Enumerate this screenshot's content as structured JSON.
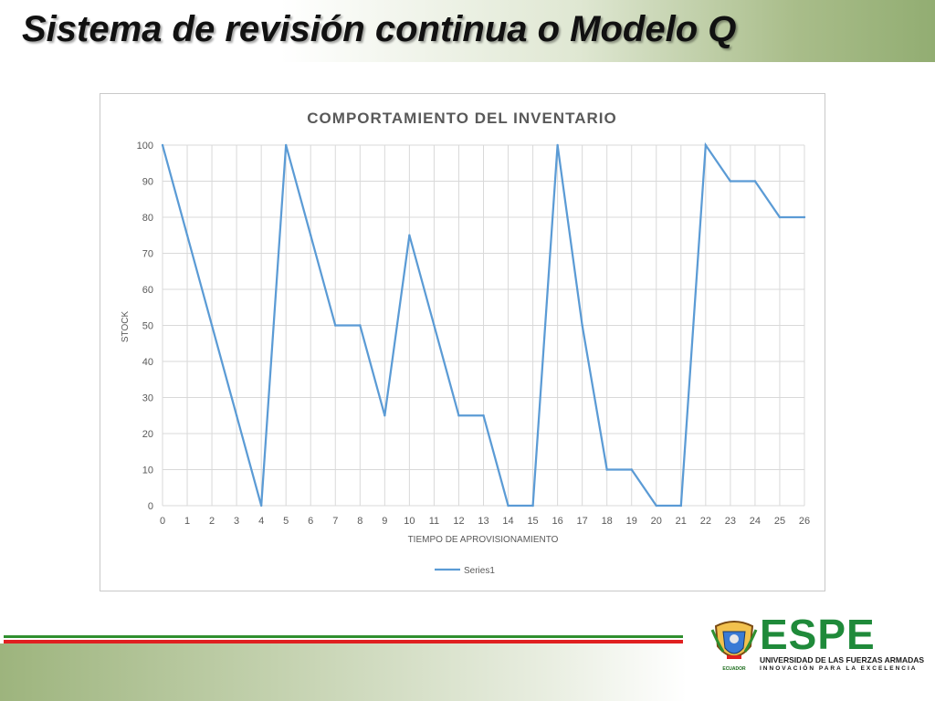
{
  "slide": {
    "title": "Sistema de revisión continua o Modelo Q"
  },
  "logo": {
    "wordmark": "ESPE",
    "line1": "UNIVERSIDAD DE LAS FUERZAS ARMADAS",
    "line2": "INNOVACIÓN PARA LA EXCELENCIA",
    "crest_label": "ECUADOR",
    "brand_color": "#1f8a3a"
  },
  "colors": {
    "series_line": "#5b9bd5",
    "title_text": "#595959",
    "stripe_green": "#2f8f2f",
    "stripe_red": "#e02020"
  },
  "chart_data": {
    "type": "line",
    "title": "COMPORTAMIENTO  DEL INVENTARIO",
    "xlabel": "TIEMPO DE APROVISIONAMIENTO",
    "ylabel": "STOCK",
    "x": [
      0,
      1,
      2,
      3,
      4,
      5,
      6,
      7,
      8,
      9,
      10,
      11,
      12,
      13,
      14,
      15,
      16,
      17,
      18,
      19,
      20,
      21,
      22,
      23,
      24,
      25,
      26
    ],
    "xticks": [
      "0",
      "1",
      "2",
      "3",
      "4",
      "5",
      "6",
      "7",
      "8",
      "9",
      "10",
      "11",
      "12",
      "13",
      "14",
      "15",
      "16",
      "17",
      "18",
      "19",
      "20",
      "21",
      "22",
      "23",
      "24",
      "25",
      "26"
    ],
    "yticks": [
      "0",
      "10",
      "20",
      "30",
      "40",
      "50",
      "60",
      "70",
      "80",
      "90",
      "100"
    ],
    "xlim": [
      0,
      26
    ],
    "ylim": [
      0,
      100
    ],
    "grid": true,
    "legend_position": "bottom",
    "series": [
      {
        "name": "Series1",
        "values": [
          100,
          75,
          50,
          25,
          0,
          100,
          75,
          50,
          50,
          25,
          75,
          50,
          25,
          25,
          0,
          0,
          100,
          50,
          10,
          10,
          0,
          0,
          100,
          90,
          90,
          80,
          80
        ]
      }
    ]
  }
}
